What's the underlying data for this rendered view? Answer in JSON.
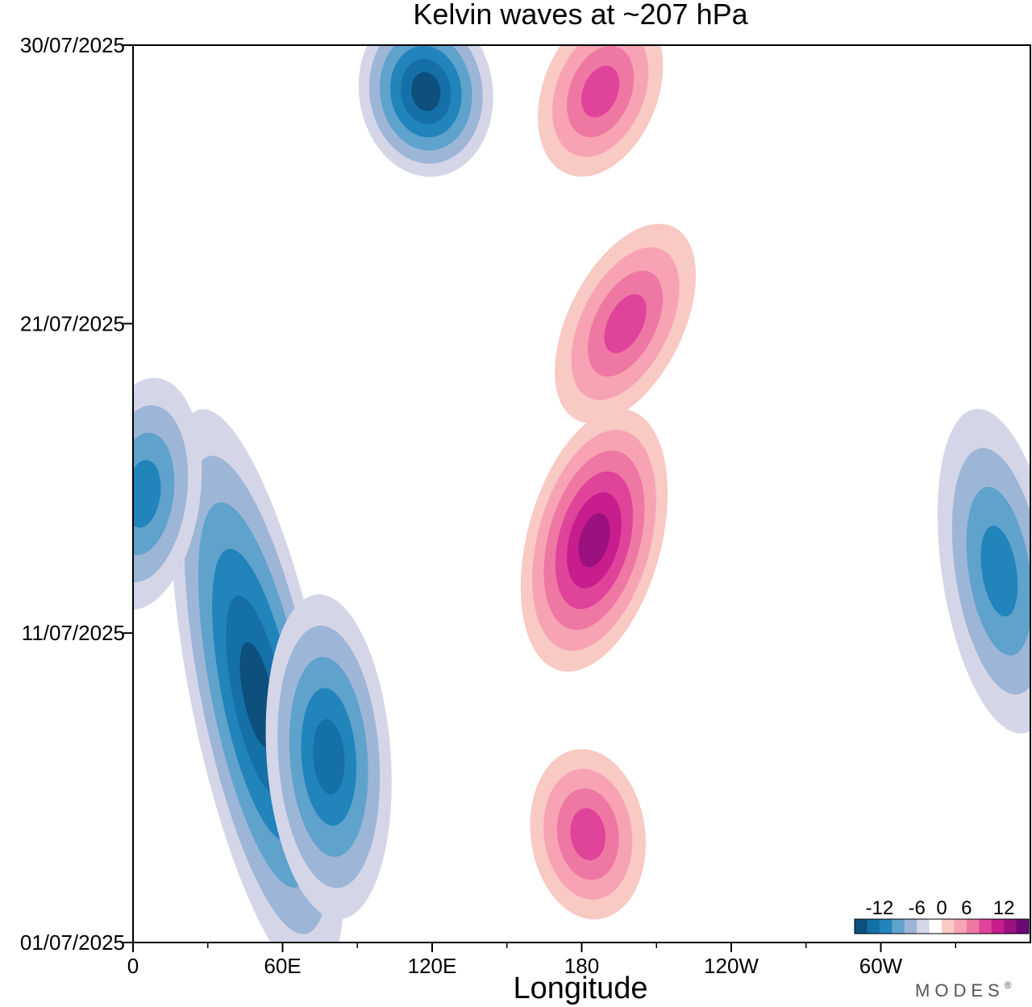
{
  "chart_data": {
    "type": "heatmap",
    "subtype": "filled-contour (Hovmoller diagram)",
    "title": "Kelvin waves at ~207 hPa",
    "xlabel": "Longitude",
    "ylabel": "",
    "x_range_deg": [
      0,
      360
    ],
    "x_ticks": [
      {
        "deg": 0,
        "label": "0"
      },
      {
        "deg": 60,
        "label": "60E"
      },
      {
        "deg": 120,
        "label": "120E"
      },
      {
        "deg": 180,
        "label": "180"
      },
      {
        "deg": 240,
        "label": "120W"
      },
      {
        "deg": 300,
        "label": "60W"
      }
    ],
    "x_minor_ticks_deg": [
      30,
      90,
      150,
      210,
      270,
      330
    ],
    "y_range_days": [
      0,
      29
    ],
    "y_ticks": [
      {
        "day": 0,
        "label": "01/07/2025"
      },
      {
        "day": 10,
        "label": "11/07/2025"
      },
      {
        "day": 20,
        "label": "21/07/2025"
      },
      {
        "day": 29,
        "label": "30/07/2025"
      }
    ],
    "colorbar": {
      "levels": [
        -14,
        -12,
        -10,
        -8,
        -6,
        -4,
        -2,
        2,
        4,
        6,
        8,
        10,
        12,
        14
      ],
      "tick_labels": [
        "-12",
        "-6",
        "0",
        "6",
        "12"
      ],
      "colors": [
        "#0d4f7d",
        "#1570a8",
        "#2184bb",
        "#5fa2cc",
        "#9db6d8",
        "#d4d6e8",
        "#ffffff",
        "#f9c9c4",
        "#f7a3b4",
        "#ef77a4",
        "#e0439a",
        "#c71d8d",
        "#9b1180",
        "#6d0874"
      ]
    },
    "features": [
      {
        "sign": "negative",
        "max_magnitude": 12,
        "lon_start": 70,
        "lon_end": 30,
        "day_start": 0,
        "day_end": 16
      },
      {
        "sign": "negative",
        "max_magnitude": 10,
        "lon_start": 82,
        "lon_end": 75,
        "day_start": 2,
        "day_end": 10
      },
      {
        "sign": "negative",
        "max_magnitude": 12,
        "lon_start": 120,
        "lon_end": 115,
        "day_start": 26,
        "day_end": 29
      },
      {
        "sign": "negative",
        "max_magnitude": 8,
        "lon_start": 0,
        "lon_end": 8,
        "day_start": 12,
        "day_end": 17
      },
      {
        "sign": "negative",
        "max_magnitude": 8,
        "lon_start": 355,
        "lon_end": 340,
        "day_start": 8,
        "day_end": 16
      },
      {
        "sign": "positive",
        "max_magnitude": 12,
        "lon_start": 175,
        "lon_end": 195,
        "day_start": 10,
        "day_end": 16
      },
      {
        "sign": "positive",
        "max_magnitude": 8,
        "lon_start": 185,
        "lon_end": 180,
        "day_start": 2,
        "day_end": 5
      },
      {
        "sign": "positive",
        "max_magnitude": 8,
        "lon_start": 185,
        "lon_end": 210,
        "day_start": 18,
        "day_end": 22
      },
      {
        "sign": "positive",
        "max_magnitude": 8,
        "lon_start": 180,
        "lon_end": 195,
        "day_start": 26,
        "day_end": 29
      }
    ]
  },
  "branding": {
    "text": "MODES",
    "mark": "®"
  }
}
